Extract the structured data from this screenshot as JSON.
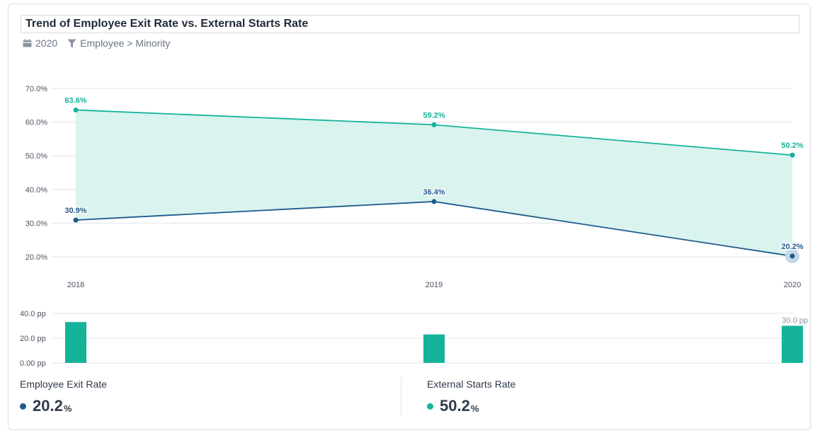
{
  "header": {
    "title": "Trend of Employee Exit Rate vs. External Starts Rate",
    "period": "2020",
    "filter": "Employee > Minority"
  },
  "icons": {
    "period": "calendar-icon",
    "filter": "funnel-icon"
  },
  "colors": {
    "exit": "#1f5a8c",
    "starts": "#14b39a",
    "band": "#d9f3ee",
    "bar": "#14b39a",
    "grid": "#dfe3e8",
    "axis_text": "#4a5260"
  },
  "chart_data": [
    {
      "type": "line",
      "x": [
        "2018",
        "2019",
        "2020"
      ],
      "series": [
        {
          "name": "Employee Exit Rate",
          "values": [
            30.9,
            36.4,
            20.2
          ],
          "labels": [
            "30.9%",
            "36.4%",
            "20.2%"
          ]
        },
        {
          "name": "External Starts Rate",
          "values": [
            63.6,
            59.2,
            50.2
          ],
          "labels": [
            "63.6%",
            "59.2%",
            "50.2%"
          ]
        }
      ],
      "area_between_series": true,
      "highlighted_point": {
        "series": "Employee Exit Rate",
        "x": "2020"
      },
      "ylim": [
        15,
        70
      ],
      "yticks": [
        20,
        30,
        40,
        50,
        60,
        70
      ],
      "ytick_labels": [
        "20.0%",
        "30.0%",
        "40.0%",
        "50.0%",
        "60.0%",
        "70.0%"
      ],
      "grid": true
    },
    {
      "type": "bar",
      "categories": [
        "2018",
        "2019",
        "2020"
      ],
      "values": [
        33.0,
        23.0,
        30.0
      ],
      "data_labels": [
        "",
        "",
        "30.0 pp"
      ],
      "ylim": [
        0,
        40
      ],
      "yticks": [
        0,
        20,
        40
      ],
      "ytick_labels": [
        "0.00 pp",
        "20.0 pp",
        "40.0 pp"
      ],
      "grid": true
    }
  ],
  "summary": {
    "exit": {
      "label": "Employee Exit Rate",
      "value": "20.2",
      "unit": "%"
    },
    "starts": {
      "label": "External Starts Rate",
      "value": "50.2",
      "unit": "%"
    }
  }
}
